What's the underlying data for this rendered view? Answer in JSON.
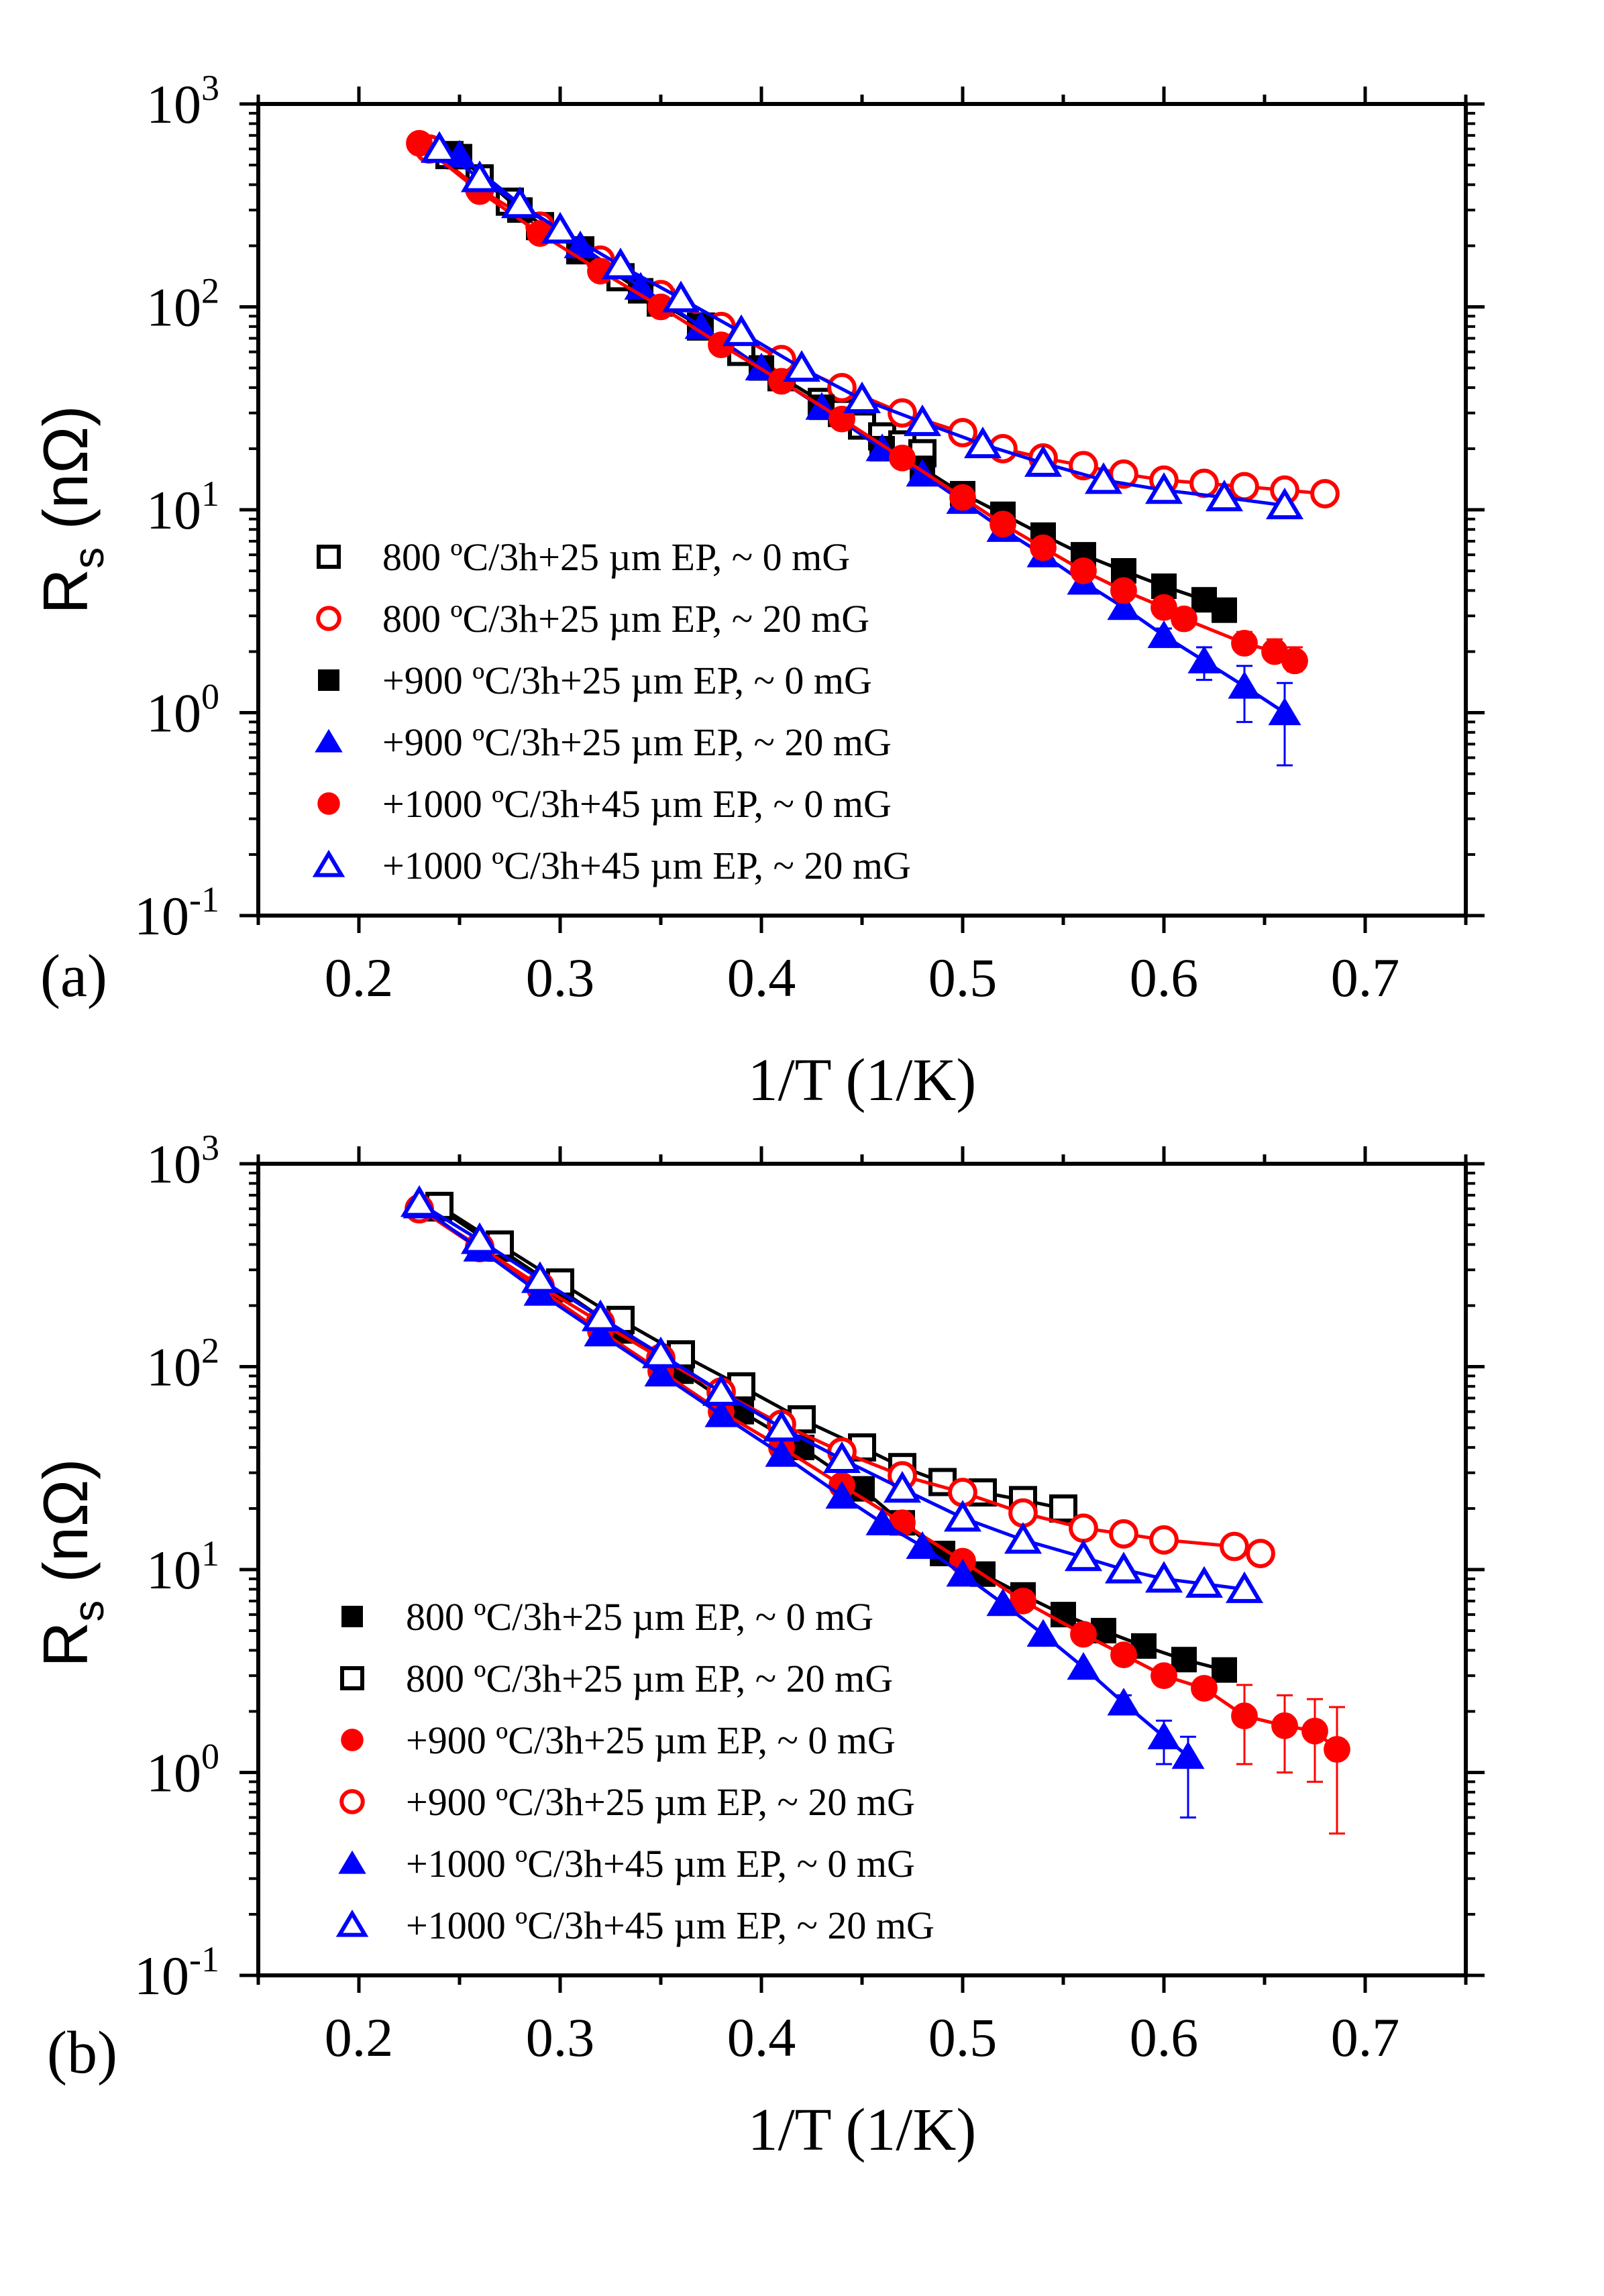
{
  "chart_data": [
    {
      "type": "scatter",
      "panel_label": "(a)",
      "xlabel": "1/T (1/K)",
      "ylabel_main": "R",
      "ylabel_sub": "s",
      "ylabel_unit": " (nΩ)",
      "xlim": [
        0.15,
        0.75
      ],
      "ylim_log10": [
        -1,
        3
      ],
      "x_ticks": [
        0.2,
        0.3,
        0.4,
        0.5,
        0.6,
        0.7
      ],
      "x_tick_labels": [
        "0.2",
        "0.3",
        "0.4",
        "0.5",
        "0.6",
        "0.7"
      ],
      "y_ticks_exp": [
        -1,
        0,
        1,
        2,
        3
      ],
      "y_tick_base": "10",
      "y_tick_exps": [
        "-1",
        "0",
        "1",
        "2",
        "3"
      ],
      "legend_position": "bottom-left",
      "series": [
        {
          "name": "800 ºC/3h+25 µm EP, ~ 0 mG",
          "marker": "square",
          "filled": false,
          "color": "#000000",
          "x": [
            0.245,
            0.26,
            0.275,
            0.29,
            0.31,
            0.33,
            0.35,
            0.37,
            0.39,
            0.41,
            0.43,
            0.44,
            0.45,
            0.46,
            0.47,
            0.48
          ],
          "y": [
            560,
            430,
            330,
            250,
            190,
            140,
            105,
            80,
            60,
            45,
            34,
            30,
            26,
            23,
            21,
            19
          ]
        },
        {
          "name": "800 ºC/3h+25 µm EP, ~ 20 mG",
          "marker": "circle",
          "filled": false,
          "color": "#ff0000",
          "x": [
            0.235,
            0.26,
            0.29,
            0.32,
            0.35,
            0.38,
            0.41,
            0.44,
            0.47,
            0.5,
            0.52,
            0.54,
            0.56,
            0.58,
            0.6,
            0.62,
            0.64,
            0.66,
            0.68
          ],
          "y": [
            600,
            380,
            250,
            170,
            115,
            80,
            55,
            40,
            30,
            24,
            20,
            18,
            16.5,
            15,
            14,
            13.5,
            13,
            12.5,
            12
          ]
        },
        {
          "name": "+900 ºC/3h+25 µm EP, ~ 0 mG",
          "marker": "square",
          "filled": true,
          "color": "#000000",
          "x": [
            0.25,
            0.28,
            0.31,
            0.34,
            0.37,
            0.4,
            0.43,
            0.46,
            0.48,
            0.5,
            0.52,
            0.54,
            0.56,
            0.58,
            0.6,
            0.62,
            0.63
          ],
          "y": [
            550,
            300,
            190,
            120,
            80,
            50,
            32,
            20,
            16,
            12,
            9.5,
            7.5,
            6,
            5,
            4.2,
            3.6,
            3.2
          ]
        },
        {
          "name": "+900 ºC/3h+25 µm EP, ~ 20 mG",
          "marker": "triangle",
          "filled": true,
          "color": "#0000ff",
          "x": [
            0.25,
            0.28,
            0.31,
            0.34,
            0.37,
            0.4,
            0.43,
            0.46,
            0.48,
            0.5,
            0.52,
            0.54,
            0.56,
            0.58,
            0.6,
            0.62,
            0.64,
            0.66
          ],
          "y": [
            560,
            320,
            200,
            125,
            80,
            50,
            32,
            20,
            15,
            11,
            8,
            6,
            4.4,
            3.3,
            2.4,
            1.8,
            1.35,
            1.0
          ],
          "err_lo": [
            0,
            0,
            0,
            0,
            0,
            0,
            0,
            0,
            0,
            0,
            0,
            0,
            0,
            0,
            0.2,
            0.35,
            0.45,
            0.45
          ],
          "err_hi": [
            0,
            0,
            0,
            0,
            0,
            0,
            0,
            0,
            0,
            0,
            0,
            0,
            0,
            0,
            0.2,
            0.3,
            0.35,
            0.4
          ]
        },
        {
          "name": "+1000 ºC/3h+45 µm EP, ~ 0 mG",
          "marker": "circle",
          "filled": true,
          "color": "#ff0000",
          "x": [
            0.23,
            0.26,
            0.29,
            0.32,
            0.35,
            0.38,
            0.41,
            0.44,
            0.47,
            0.5,
            0.52,
            0.54,
            0.56,
            0.58,
            0.6,
            0.61,
            0.64,
            0.655,
            0.665
          ],
          "y": [
            640,
            370,
            230,
            150,
            100,
            65,
            43,
            28,
            18,
            11.5,
            8.5,
            6.5,
            5,
            4,
            3.3,
            2.9,
            2.2,
            2.0,
            1.8
          ],
          "err_lo": [
            0,
            0,
            0,
            0,
            0,
            0,
            0,
            0,
            0,
            0,
            0,
            0,
            0,
            0,
            0,
            0,
            0.2,
            0.2,
            0.2
          ],
          "err_hi": [
            0,
            0,
            0,
            0,
            0,
            0,
            0,
            0,
            0,
            0,
            0,
            0,
            0,
            0,
            0,
            0,
            0.3,
            0.3,
            0.3
          ]
        },
        {
          "name": "+1000 ºC/3h+45 µm EP, ~ 20 mG",
          "marker": "triangle",
          "filled": false,
          "color": "#0000ff",
          "x": [
            0.24,
            0.26,
            0.28,
            0.3,
            0.33,
            0.36,
            0.39,
            0.42,
            0.45,
            0.48,
            0.51,
            0.54,
            0.57,
            0.6,
            0.63,
            0.66
          ],
          "y": [
            600,
            430,
            320,
            240,
            160,
            110,
            75,
            50,
            35,
            27,
            21,
            17,
            14,
            12.5,
            11.5,
            10.5
          ]
        }
      ]
    },
    {
      "type": "scatter",
      "panel_label": "(b)",
      "xlabel": "1/T (1/K)",
      "ylabel_main": "R",
      "ylabel_sub": "s",
      "ylabel_unit": " (nΩ)",
      "xlim": [
        0.15,
        0.75
      ],
      "ylim_log10": [
        -1,
        3
      ],
      "x_ticks": [
        0.2,
        0.3,
        0.4,
        0.5,
        0.6,
        0.7
      ],
      "x_tick_labels": [
        "0.2",
        "0.3",
        "0.4",
        "0.5",
        "0.6",
        "0.7"
      ],
      "y_ticks_exp": [
        -1,
        0,
        1,
        2,
        3
      ],
      "y_tick_base": "10",
      "y_tick_exps": [
        "-1",
        "0",
        "1",
        "2",
        "3"
      ],
      "legend_position": "bottom-left",
      "series": [
        {
          "name": "800 ºC/3h+25 µm EP, ~ 0 mG",
          "marker": "square",
          "filled": true,
          "color": "#000000",
          "x": [
            0.24,
            0.27,
            0.3,
            0.33,
            0.36,
            0.39,
            0.42,
            0.45,
            0.47,
            0.49,
            0.51,
            0.53,
            0.55,
            0.57,
            0.59,
            0.61,
            0.63
          ],
          "y": [
            600,
            380,
            240,
            150,
            95,
            60,
            40,
            25,
            17,
            12,
            9.5,
            7.5,
            6,
            5,
            4.2,
            3.6,
            3.2
          ]
        },
        {
          "name": "800 ºC/3h+25 µm EP, ~ 20 mG",
          "marker": "square",
          "filled": false,
          "color": "#000000",
          "x": [
            0.24,
            0.27,
            0.3,
            0.33,
            0.36,
            0.39,
            0.42,
            0.45,
            0.47,
            0.49,
            0.51,
            0.53,
            0.55
          ],
          "y": [
            620,
            400,
            260,
            170,
            115,
            80,
            55,
            40,
            32,
            27,
            24,
            22,
            20
          ]
        },
        {
          "name": "+900 ºC/3h+25 µm EP, ~ 0 mG",
          "marker": "circle",
          "filled": true,
          "color": "#ff0000",
          "x": [
            0.23,
            0.26,
            0.29,
            0.32,
            0.35,
            0.38,
            0.41,
            0.44,
            0.47,
            0.5,
            0.53,
            0.56,
            0.58,
            0.6,
            0.62,
            0.64,
            0.66,
            0.675,
            0.686
          ],
          "y": [
            600,
            380,
            240,
            150,
            95,
            60,
            40,
            26,
            17,
            11,
            7,
            4.8,
            3.8,
            3,
            2.6,
            1.9,
            1.7,
            1.6,
            1.3
          ],
          "err_lo": [
            0,
            0,
            0,
            0,
            0,
            0,
            0,
            0,
            0,
            0,
            0,
            0,
            0,
            0,
            0,
            0.8,
            0.7,
            0.7,
            0.8
          ],
          "err_hi": [
            0,
            0,
            0,
            0,
            0,
            0,
            0,
            0,
            0,
            0,
            0,
            0,
            0,
            0,
            0,
            0.8,
            0.7,
            0.7,
            0.8
          ]
        },
        {
          "name": "+900 ºC/3h+25 µm EP, ~ 20 mG",
          "marker": "circle",
          "filled": false,
          "color": "#ff0000",
          "x": [
            0.23,
            0.26,
            0.29,
            0.32,
            0.35,
            0.38,
            0.41,
            0.44,
            0.47,
            0.5,
            0.53,
            0.56,
            0.58,
            0.6,
            0.635,
            0.648
          ],
          "y": [
            600,
            390,
            250,
            165,
            110,
            75,
            52,
            38,
            29,
            24,
            19,
            16,
            15,
            14,
            13,
            12
          ]
        },
        {
          "name": "+1000 ºC/3h+45 µm EP, ~ 0 mG",
          "marker": "triangle",
          "filled": true,
          "color": "#0000ff",
          "x": [
            0.23,
            0.26,
            0.29,
            0.32,
            0.35,
            0.38,
            0.41,
            0.44,
            0.46,
            0.48,
            0.5,
            0.52,
            0.54,
            0.56,
            0.58,
            0.6,
            0.612
          ],
          "y": [
            620,
            380,
            230,
            145,
            92,
            58,
            37,
            23,
            17,
            13,
            9.5,
            6.8,
            4.8,
            3.3,
            2.2,
            1.5,
            1.2
          ],
          "err_lo": [
            0,
            0,
            0,
            0,
            0,
            0,
            0,
            0,
            0,
            0,
            0,
            0,
            0,
            0,
            0.2,
            0.4,
            0.6
          ],
          "err_hi": [
            0,
            0,
            0,
            0,
            0,
            0,
            0,
            0,
            0,
            0,
            0,
            0,
            0,
            0,
            0.2,
            0.3,
            0.3
          ]
        },
        {
          "name": "+1000 ºC/3h+45 µm EP, ~ 20 mG",
          "marker": "triangle",
          "filled": false,
          "color": "#0000ff",
          "x": [
            0.23,
            0.26,
            0.29,
            0.32,
            0.35,
            0.38,
            0.41,
            0.44,
            0.47,
            0.5,
            0.53,
            0.56,
            0.58,
            0.6,
            0.62,
            0.64
          ],
          "y": [
            640,
            420,
            270,
            175,
            115,
            75,
            50,
            35,
            25,
            18,
            14,
            11.5,
            10,
            9,
            8.5,
            8
          ]
        }
      ]
    }
  ]
}
